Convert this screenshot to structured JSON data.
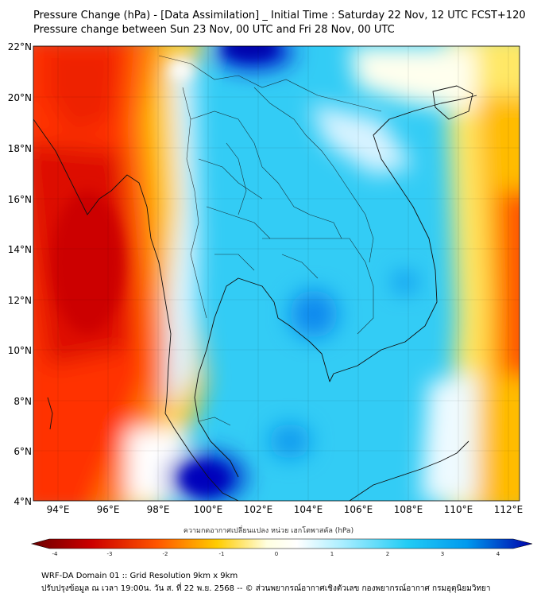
{
  "header": {
    "title_line1": "Pressure Change (hPa) - [Data Assimilation] _ Initial Time : Saturday 22 Nov, 12 UTC FCST+120",
    "title_line2": "Pressure change between Sun 23 Nov, 00 UTC and Fri 28 Nov, 00 UTC"
  },
  "map": {
    "lat_labels": [
      "22°N",
      "20°N",
      "18°N",
      "16°N",
      "14°N",
      "12°N",
      "10°N",
      "8°N",
      "6°N",
      "4°N"
    ],
    "lon_labels": [
      "94°E",
      "96°E",
      "98°E",
      "100°E",
      "102°E",
      "104°E",
      "106°E",
      "108°E",
      "110°E",
      "112°E"
    ],
    "colors": {
      "high_negative": "#cc0000",
      "negative": "#ff6600",
      "neutral": "#ffffff",
      "positive": "#33ccff",
      "high_positive": "#0000cc"
    }
  },
  "colorbar": {
    "title": "ความกดอากาศเปลี่ยนแปลง หน่วย เฮกโตพาสคัล (hPa)",
    "ticks": [
      "-4",
      "-3",
      "-2",
      "-1",
      "0",
      "1",
      "2",
      "3",
      "4"
    ]
  },
  "footer": {
    "line1": "WRF-DA Domain 01 :: Grid Resolution 9km x 9km",
    "line2": "ปรับปรุงข้อมูล ณ เวลา 19:00น. วัน ส. ที่ 22 พ.ย. 2568 -- © ส่วนพยากรณ์อากาศเชิงตัวเลข กองพยากรณ์อากาศ กรมอุตุนิยมวิทยา"
  }
}
